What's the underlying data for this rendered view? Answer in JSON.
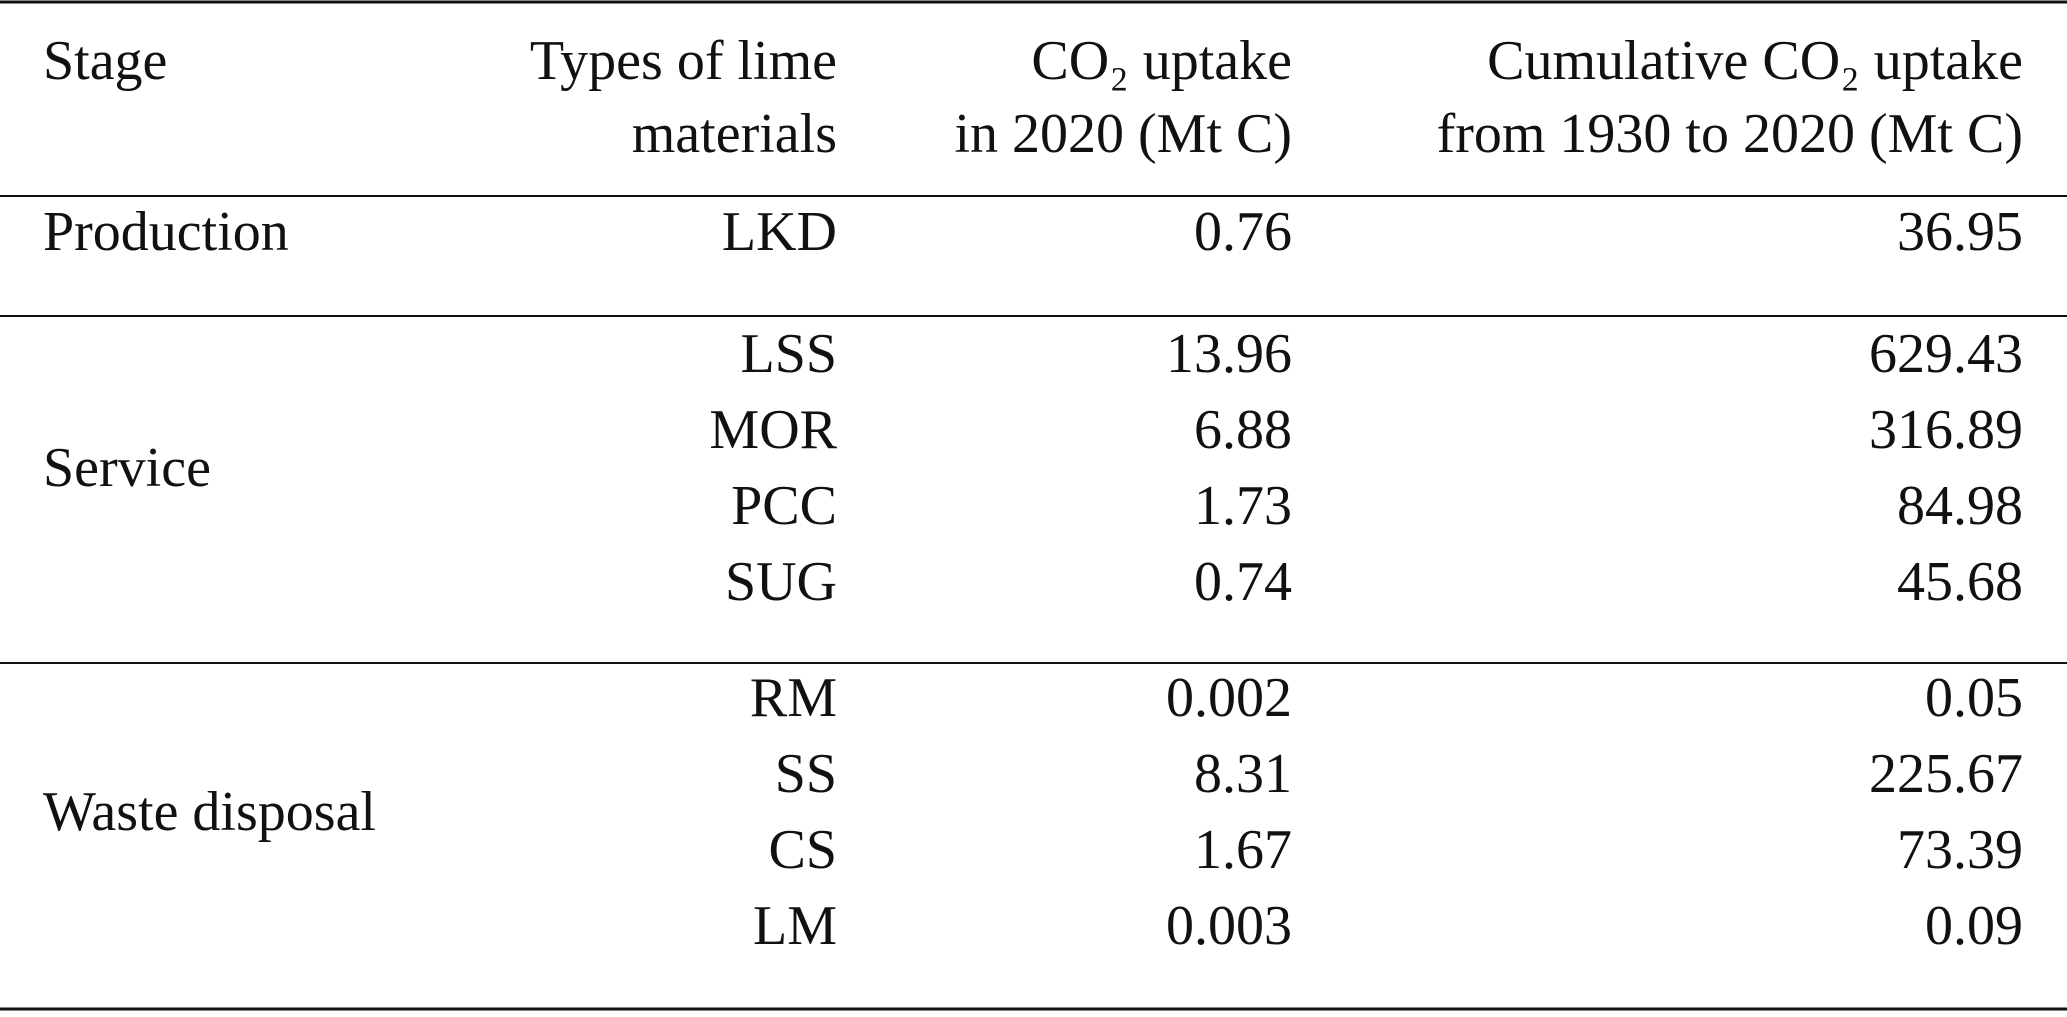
{
  "table": {
    "columns": [
      [
        "Stage"
      ],
      [
        "Types of lime",
        "materials"
      ],
      [
        "CO₂ uptake",
        "in 2020 (Mt C)"
      ],
      [
        "Cumulative CO₂ uptake",
        "from 1930 to 2020 (Mt C)"
      ]
    ],
    "groups": [
      {
        "stage": "Production",
        "rows": [
          [
            "LKD",
            0.76,
            36.95
          ]
        ]
      },
      {
        "stage": "Service",
        "rows": [
          [
            "LSS",
            13.96,
            629.43
          ],
          [
            "MOR",
            6.88,
            316.89
          ],
          [
            "PCC",
            1.73,
            84.98
          ],
          [
            "SUG",
            0.74,
            45.68
          ]
        ]
      },
      {
        "stage": "Waste disposal",
        "rows": [
          [
            "RM",
            0.002,
            0.05
          ],
          [
            "SS",
            8.31,
            225.67
          ],
          [
            "CS",
            1.67,
            73.39
          ],
          [
            "LM",
            0.003,
            0.09
          ]
        ]
      }
    ]
  }
}
